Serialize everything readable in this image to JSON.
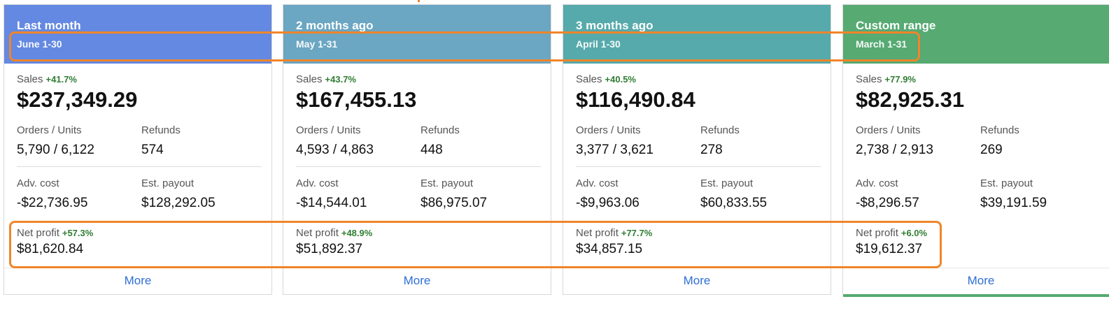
{
  "colors": {
    "card0_header": "#6489e2",
    "card1_header": "#6ba6c3",
    "card2_header": "#56aaab",
    "card3_header": "#56aa72",
    "highlight": "#f0852a",
    "link": "#2f6fd6",
    "positive": "#2f7d32"
  },
  "cards": [
    {
      "title": "Last month",
      "range": "June 1-30",
      "sales_label": "Sales",
      "sales_delta": "+41.7%",
      "sales": "$237,349.29",
      "orders_label": "Orders / Units",
      "orders": "5,790 / 6,122",
      "refunds_label": "Refunds",
      "refunds": "574",
      "adv_label": "Adv. cost",
      "adv": "-$22,736.95",
      "payout_label": "Est. payout",
      "payout": "$128,292.05",
      "np_label": "Net profit",
      "np_delta": "+57.3%",
      "np": "$81,620.84",
      "more": "More"
    },
    {
      "title": "2 months ago",
      "range": "May 1-31",
      "sales_label": "Sales",
      "sales_delta": "+43.7%",
      "sales": "$167,455.13",
      "orders_label": "Orders / Units",
      "orders": "4,593 / 4,863",
      "refunds_label": "Refunds",
      "refunds": "448",
      "adv_label": "Adv. cost",
      "adv": "-$14,544.01",
      "payout_label": "Est. payout",
      "payout": "$86,975.07",
      "np_label": "Net profit",
      "np_delta": "+48.9%",
      "np": "$51,892.37",
      "more": "More"
    },
    {
      "title": "3 months ago",
      "range": "April 1-30",
      "sales_label": "Sales",
      "sales_delta": "+40.5%",
      "sales": "$116,490.84",
      "orders_label": "Orders / Units",
      "orders": "3,377 / 3,621",
      "refunds_label": "Refunds",
      "refunds": "278",
      "adv_label": "Adv. cost",
      "adv": "-$9,963.06",
      "payout_label": "Est. payout",
      "payout": "$60,833.55",
      "np_label": "Net profit",
      "np_delta": "+77.7%",
      "np": "$34,857.15",
      "more": "More"
    },
    {
      "title": "Custom range",
      "range": "March 1-31",
      "sales_label": "Sales",
      "sales_delta": "+77.9%",
      "sales": "$82,925.31",
      "orders_label": "Orders / Units",
      "orders": "2,738 / 2,913",
      "refunds_label": "Refunds",
      "refunds": "269",
      "adv_label": "Adv. cost",
      "adv": "-$8,296.57",
      "payout_label": "Est. payout",
      "payout": "$39,191.59",
      "np_label": "Net profit",
      "np_delta": "+6.0%",
      "np": "$19,612.37",
      "more": "More"
    }
  ]
}
